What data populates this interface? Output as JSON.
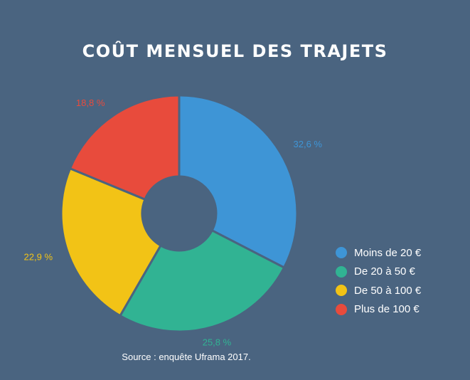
{
  "chart_data": {
    "type": "pie",
    "title": "Coût mensuel des trajets",
    "categories": [
      "Moins de 20 €",
      "De 20 à 50 €",
      "De 50 à 100 €",
      "Plus de 100 €"
    ],
    "values": [
      32.6,
      25.8,
      22.9,
      18.8
    ],
    "value_labels": [
      "32,6 %",
      "25,8 %",
      "22,9 %",
      "18,8 %"
    ],
    "colors": [
      "#3e95d6",
      "#31b393",
      "#f2c316",
      "#e84b3c"
    ],
    "donut": true,
    "legend_position": "right",
    "source": "Source : enquête Uframa 2017."
  },
  "background_color": "#4a6480"
}
